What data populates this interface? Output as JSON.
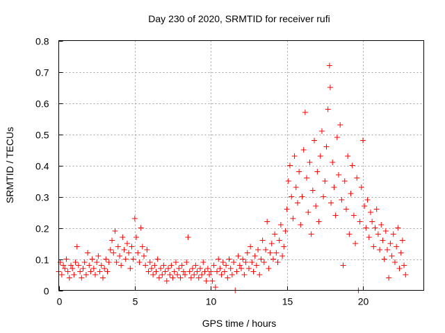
{
  "chart_data": {
    "type": "scatter",
    "title": "Day 230 of 2020, SRMTID for receiver rufi",
    "xlabel": "GPS time / hours",
    "ylabel": "SRMTID / TECUs",
    "xlim": [
      0,
      24
    ],
    "ylim": [
      0,
      0.8
    ],
    "xticks": [
      "0",
      "5",
      "10",
      "15",
      "20"
    ],
    "xtick_values": [
      0,
      5,
      10,
      15,
      20
    ],
    "yticks": [
      "0",
      "0.1",
      "0.2",
      "0.3",
      "0.4",
      "0.5",
      "0.6",
      "0.7",
      "0.8"
    ],
    "ytick_values": [
      0,
      0.1,
      0.2,
      0.3,
      0.4,
      0.5,
      0.6,
      0.7,
      0.8
    ],
    "grid": true,
    "marker": "+",
    "color": "#ff0000",
    "series": [
      {
        "name": "SRMTID",
        "points": [
          [
            0.0,
            0.06
          ],
          [
            0.1,
            0.09
          ],
          [
            0.2,
            0.05
          ],
          [
            0.3,
            0.08
          ],
          [
            0.4,
            0.07
          ],
          [
            0.5,
            0.1
          ],
          [
            0.6,
            0.06
          ],
          [
            0.7,
            0.04
          ],
          [
            0.8,
            0.08
          ],
          [
            0.9,
            0.07
          ],
          [
            1.0,
            0.05
          ],
          [
            1.1,
            0.09
          ],
          [
            1.2,
            0.14
          ],
          [
            1.3,
            0.08
          ],
          [
            1.4,
            0.06
          ],
          [
            1.5,
            0.04
          ],
          [
            1.6,
            0.07
          ],
          [
            1.7,
            0.09
          ],
          [
            1.8,
            0.05
          ],
          [
            1.9,
            0.12
          ],
          [
            2.0,
            0.08
          ],
          [
            2.1,
            0.06
          ],
          [
            2.2,
            0.1
          ],
          [
            2.3,
            0.07
          ],
          [
            2.4,
            0.05
          ],
          [
            2.5,
            0.09
          ],
          [
            2.6,
            0.11
          ],
          [
            2.7,
            0.06
          ],
          [
            2.8,
            0.08
          ],
          [
            2.9,
            0.04
          ],
          [
            3.0,
            0.07
          ],
          [
            3.1,
            0.1
          ],
          [
            3.2,
            0.06
          ],
          [
            3.3,
            0.09
          ],
          [
            3.4,
            0.13
          ],
          [
            3.5,
            0.16
          ],
          [
            3.6,
            0.12
          ],
          [
            3.7,
            0.19
          ],
          [
            3.8,
            0.09
          ],
          [
            3.9,
            0.14
          ],
          [
            4.0,
            0.11
          ],
          [
            4.1,
            0.08
          ],
          [
            4.2,
            0.17
          ],
          [
            4.3,
            0.13
          ],
          [
            4.4,
            0.1
          ],
          [
            4.5,
            0.15
          ],
          [
            4.6,
            0.12
          ],
          [
            4.7,
            0.07
          ],
          [
            4.8,
            0.14
          ],
          [
            4.9,
            0.1
          ],
          [
            5.0,
            0.23
          ],
          [
            5.1,
            0.17
          ],
          [
            5.2,
            0.12
          ],
          [
            5.3,
            0.09
          ],
          [
            5.4,
            0.2
          ],
          [
            5.5,
            0.14
          ],
          [
            5.6,
            0.11
          ],
          [
            5.7,
            0.08
          ],
          [
            5.8,
            0.13
          ],
          [
            5.9,
            0.06
          ],
          [
            6.0,
            0.09
          ],
          [
            6.1,
            0.07
          ],
          [
            6.2,
            0.05
          ],
          [
            6.3,
            0.08
          ],
          [
            6.4,
            0.06
          ],
          [
            6.5,
            0.1
          ],
          [
            6.6,
            0.04
          ],
          [
            6.7,
            0.07
          ],
          [
            6.8,
            0.05
          ],
          [
            6.9,
            0.08
          ],
          [
            7.0,
            0.06
          ],
          [
            7.1,
            0.03
          ],
          [
            7.2,
            0.07
          ],
          [
            7.3,
            0.05
          ],
          [
            7.4,
            0.08
          ],
          [
            7.5,
            0.04
          ],
          [
            7.6,
            0.06
          ],
          [
            7.7,
            0.09
          ],
          [
            7.8,
            0.05
          ],
          [
            7.9,
            0.07
          ],
          [
            8.0,
            0.04
          ],
          [
            8.1,
            0.08
          ],
          [
            8.2,
            0.06
          ],
          [
            8.3,
            0.05
          ],
          [
            8.4,
            0.09
          ],
          [
            8.5,
            0.17
          ],
          [
            8.6,
            0.06
          ],
          [
            8.7,
            0.04
          ],
          [
            8.8,
            0.07
          ],
          [
            8.9,
            0.05
          ],
          [
            9.0,
            0.08
          ],
          [
            9.1,
            0.06
          ],
          [
            9.2,
            0.04
          ],
          [
            9.3,
            0.07
          ],
          [
            9.4,
            0.05
          ],
          [
            9.5,
            0.09
          ],
          [
            9.6,
            0.06
          ],
          [
            9.7,
            0.03
          ],
          [
            9.8,
            0.07
          ],
          [
            9.9,
            0.05
          ],
          [
            10.0,
            0.06
          ],
          [
            10.1,
            0.03
          ],
          [
            10.2,
            0.08
          ],
          [
            10.3,
            0.01
          ],
          [
            10.4,
            0.06
          ],
          [
            10.5,
            0.1
          ],
          [
            10.6,
            0.07
          ],
          [
            10.7,
            0.05
          ],
          [
            10.8,
            0.09
          ],
          [
            10.9,
            0.06
          ],
          [
            11.0,
            0.08
          ],
          [
            11.1,
            0.04
          ],
          [
            11.2,
            0.1
          ],
          [
            11.3,
            0.07
          ],
          [
            11.4,
            0.05
          ],
          [
            11.5,
            0.09
          ],
          [
            11.6,
            0.0
          ],
          [
            11.7,
            0.06
          ],
          [
            11.8,
            0.11
          ],
          [
            11.9,
            0.08
          ],
          [
            12.0,
            0.07
          ],
          [
            12.1,
            0.1
          ],
          [
            12.2,
            0.05
          ],
          [
            12.3,
            0.09
          ],
          [
            12.4,
            0.12
          ],
          [
            12.5,
            0.07
          ],
          [
            12.6,
            0.14
          ],
          [
            12.7,
            0.09
          ],
          [
            12.8,
            0.06
          ],
          [
            12.9,
            0.11
          ],
          [
            13.0,
            0.08
          ],
          [
            13.1,
            0.13
          ],
          [
            13.2,
            0.05
          ],
          [
            13.3,
            0.1
          ],
          [
            13.4,
            0.16
          ],
          [
            13.5,
            0.09
          ],
          [
            13.6,
            0.13
          ],
          [
            13.7,
            0.22
          ],
          [
            13.8,
            0.07
          ],
          [
            13.9,
            0.12
          ],
          [
            14.0,
            0.15
          ],
          [
            14.1,
            0.1
          ],
          [
            14.2,
            0.18
          ],
          [
            14.3,
            0.12
          ],
          [
            14.4,
            0.09
          ],
          [
            14.5,
            0.16
          ],
          [
            14.6,
            0.21
          ],
          [
            14.7,
            0.11
          ],
          [
            14.8,
            0.14
          ],
          [
            14.9,
            0.19
          ],
          [
            15.0,
            0.26
          ],
          [
            15.1,
            0.35
          ],
          [
            15.2,
            0.4
          ],
          [
            15.3,
            0.3
          ],
          [
            15.4,
            0.23
          ],
          [
            15.5,
            0.43
          ],
          [
            15.6,
            0.33
          ],
          [
            15.7,
            0.28
          ],
          [
            15.8,
            0.38
          ],
          [
            15.9,
            0.21
          ],
          [
            16.0,
            0.3
          ],
          [
            16.1,
            0.45
          ],
          [
            16.2,
            0.57
          ],
          [
            16.3,
            0.36
          ],
          [
            16.4,
            0.25
          ],
          [
            16.5,
            0.41
          ],
          [
            16.6,
            0.18
          ],
          [
            16.7,
            0.32
          ],
          [
            16.8,
            0.48
          ],
          [
            16.9,
            0.27
          ],
          [
            17.0,
            0.38
          ],
          [
            17.1,
            0.22
          ],
          [
            17.2,
            0.43
          ],
          [
            17.3,
            0.51
          ],
          [
            17.4,
            0.3
          ],
          [
            17.5,
            0.35
          ],
          [
            17.6,
            0.46
          ],
          [
            17.7,
            0.58
          ],
          [
            17.8,
            0.72
          ],
          [
            17.85,
            0.65
          ],
          [
            17.9,
            0.28
          ],
          [
            18.0,
            0.41
          ],
          [
            18.1,
            0.33
          ],
          [
            18.2,
            0.24
          ],
          [
            18.3,
            0.49
          ],
          [
            18.4,
            0.37
          ],
          [
            18.5,
            0.53
          ],
          [
            18.6,
            0.29
          ],
          [
            18.7,
            0.08
          ],
          [
            18.8,
            0.35
          ],
          [
            18.9,
            0.26
          ],
          [
            19.0,
            0.43
          ],
          [
            19.1,
            0.18
          ],
          [
            19.2,
            0.31
          ],
          [
            19.3,
            0.4
          ],
          [
            19.4,
            0.24
          ],
          [
            19.5,
            0.15
          ],
          [
            19.6,
            0.36
          ],
          [
            19.7,
            0.0
          ],
          [
            19.8,
            0.22
          ],
          [
            19.9,
            0.33
          ],
          [
            20.0,
            0.48
          ],
          [
            20.1,
            0.27
          ],
          [
            20.2,
            0.2
          ],
          [
            20.3,
            0.29
          ],
          [
            20.4,
            0.17
          ],
          [
            20.5,
            0.25
          ],
          [
            20.6,
            0.22
          ],
          [
            20.7,
            0.14
          ],
          [
            20.8,
            0.2
          ],
          [
            20.9,
            0.26
          ],
          [
            21.0,
            0.18
          ],
          [
            21.1,
            0.13
          ],
          [
            21.2,
            0.21
          ],
          [
            21.3,
            0.16
          ],
          [
            21.4,
            0.1
          ],
          [
            21.5,
            0.19
          ],
          [
            21.6,
            0.13
          ],
          [
            21.7,
            0.04
          ],
          [
            21.8,
            0.15
          ],
          [
            21.9,
            0.11
          ],
          [
            22.0,
            0.18
          ],
          [
            22.1,
            0.09
          ],
          [
            22.2,
            0.14
          ],
          [
            22.3,
            0.2
          ],
          [
            22.4,
            0.07
          ],
          [
            22.5,
            0.12
          ],
          [
            22.6,
            0.16
          ],
          [
            22.7,
            0.08
          ],
          [
            22.8,
            0.05
          ]
        ]
      }
    ]
  }
}
